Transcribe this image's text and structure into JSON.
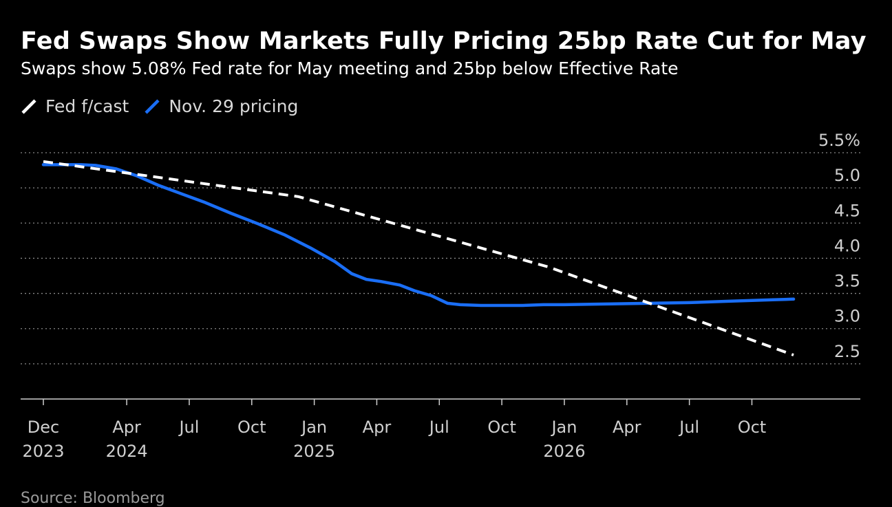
{
  "title": "Fed Swaps Show Markets Fully Pricing 25bp Rate Cut for May",
  "subtitle": "Swaps show 5.08% Fed rate for May meeting and 25bp below Effective Rate",
  "source": "Source: Bloomberg",
  "colors": {
    "background": "#000000",
    "fed_forecast": "#ffffff",
    "swaps": "#1a6ef5",
    "grid": "#8a8a8a"
  },
  "chart_data": {
    "type": "line",
    "title": "Fed Swaps Show Markets Fully Pricing 25bp Rate Cut for May",
    "subtitle": "Swaps show 5.08% Fed rate for May meeting and 25bp below Effective Rate",
    "xlabel": "",
    "ylabel": "",
    "x_unit": "months since Dec 2023",
    "xlim": [
      0,
      36
    ],
    "ylim": [
      2.0,
      5.5
    ],
    "y_ticks": [
      2.5,
      3.0,
      3.5,
      4.0,
      4.5,
      5.0,
      5.5
    ],
    "y_tick_labels": [
      "2.5",
      "3.0",
      "3.5",
      "4.0",
      "4.5",
      "5.0",
      "5.5%"
    ],
    "x_ticks": [
      {
        "x": 0,
        "label": "Dec",
        "year": "2023"
      },
      {
        "x": 4,
        "label": "Apr",
        "year": "2024"
      },
      {
        "x": 7,
        "label": "Jul",
        "year": ""
      },
      {
        "x": 10,
        "label": "Oct",
        "year": ""
      },
      {
        "x": 13,
        "label": "Jan",
        "year": "2025"
      },
      {
        "x": 16,
        "label": "Apr",
        "year": ""
      },
      {
        "x": 19,
        "label": "Jul",
        "year": ""
      },
      {
        "x": 22,
        "label": "Oct",
        "year": ""
      },
      {
        "x": 25,
        "label": "Jan",
        "year": "2026"
      },
      {
        "x": 28,
        "label": "Apr",
        "year": ""
      },
      {
        "x": 31,
        "label": "Jul",
        "year": ""
      },
      {
        "x": 34,
        "label": "Oct",
        "year": ""
      }
    ],
    "legend_position": "top-left",
    "grid": true,
    "series": [
      {
        "name": "Fed f/cast",
        "style": "dashed",
        "x": [
          0,
          12.25,
          24.25,
          36
        ],
        "y": [
          5.375,
          4.875,
          3.875,
          2.625
        ]
      },
      {
        "name": "Nov. 29 pricing",
        "style": "solid",
        "x": [
          0,
          1,
          1.8,
          2.5,
          3.5,
          4.5,
          5.5,
          6.5,
          7.7,
          9,
          10.3,
          11.6,
          12.8,
          14,
          14.8,
          15.5,
          16.2,
          17.1,
          17.8,
          18.6,
          19.4,
          20,
          21,
          22,
          23,
          24,
          25,
          27,
          29,
          31,
          33,
          35,
          36
        ],
        "y": [
          5.33,
          5.33,
          5.33,
          5.32,
          5.27,
          5.17,
          5.04,
          4.93,
          4.8,
          4.64,
          4.49,
          4.33,
          4.15,
          3.95,
          3.78,
          3.7,
          3.67,
          3.62,
          3.54,
          3.47,
          3.36,
          3.34,
          3.33,
          3.33,
          3.33,
          3.34,
          3.34,
          3.35,
          3.36,
          3.37,
          3.39,
          3.41,
          3.42
        ]
      }
    ]
  }
}
